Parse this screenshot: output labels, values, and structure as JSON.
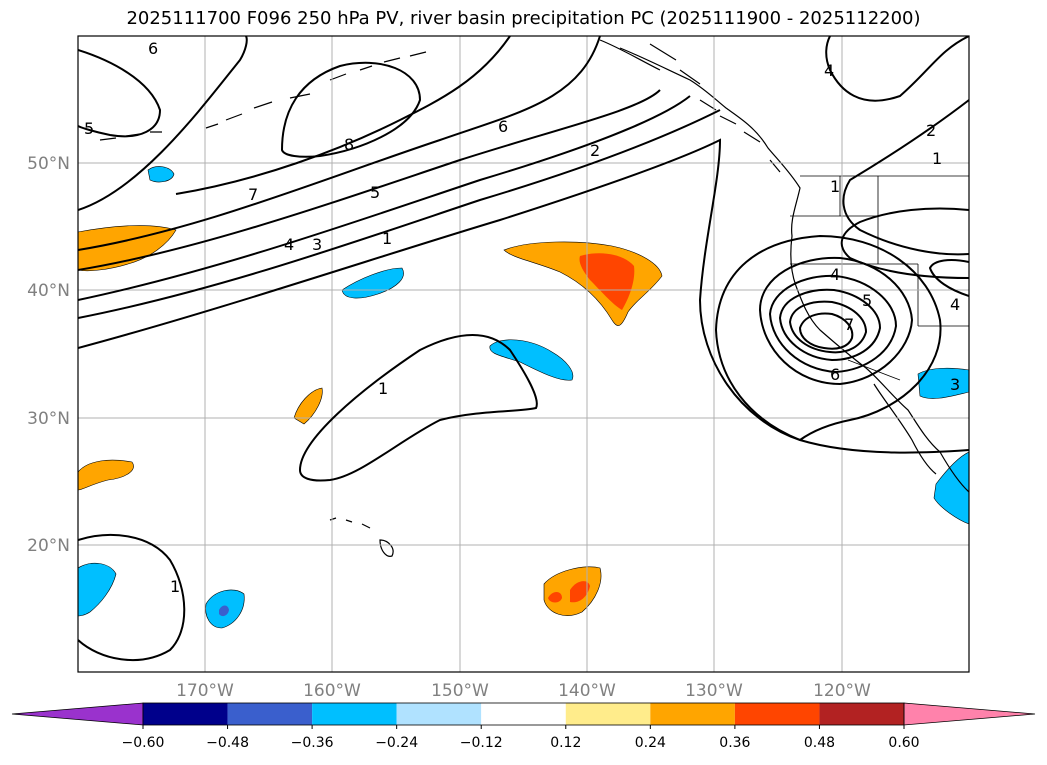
{
  "title": "2025111700 F096 250 hPa PV, river basin precipitation PC (2025111900 - 2025112200)",
  "lat_labels": [
    "50°N",
    "40°N",
    "30°N",
    "20°N"
  ],
  "lon_labels": [
    "170°W",
    "160°W",
    "150°W",
    "140°W",
    "130°W",
    "120°W"
  ],
  "colorbar": {
    "ticks": [
      "−0.60",
      "−0.48",
      "−0.36",
      "−0.24",
      "−0.12",
      "0.12",
      "0.24",
      "0.36",
      "0.48",
      "0.60"
    ],
    "colors": [
      "#9a32cd",
      "#00008b",
      "#3a5fcd",
      "#00bfff",
      "#b0e2ff",
      "#ffffff",
      "#ffec8b",
      "#ffa500",
      "#ff4500",
      "#b22222",
      "#ff82ab"
    ]
  },
  "contour_labels": [
    "6",
    "5",
    "8",
    "7",
    "4",
    "3",
    "5",
    "6",
    "2",
    "1",
    "4",
    "2",
    "1",
    "1",
    "4",
    "5",
    "7",
    "6",
    "3",
    "4",
    "1",
    "1"
  ],
  "colors": {
    "land_outline": "#000000",
    "grid": "#b0b0b0",
    "contour": "#000000"
  }
}
